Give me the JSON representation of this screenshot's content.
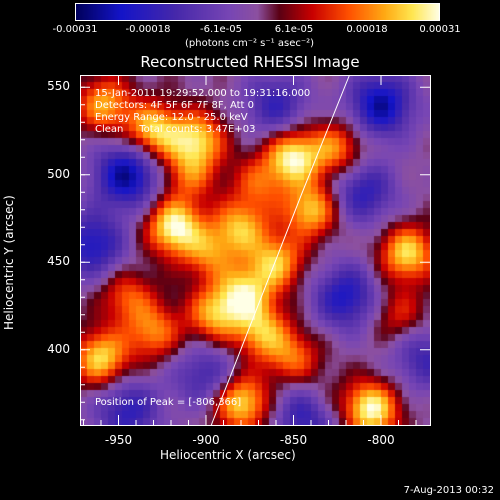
{
  "chart_data": {
    "type": "heatmap",
    "title": "Reconstructed RHESSI Image",
    "xlabel": "Heliocentric X (arcsec)",
    "ylabel": "Heliocentric Y (arcsec)",
    "xlim": [
      -972,
      -772
    ],
    "ylim": [
      357,
      557
    ],
    "xticks": [
      "-950",
      "-900",
      "-850",
      "-800"
    ],
    "xtick_values": [
      -950,
      -900,
      -850,
      -800
    ],
    "yticks": [
      "400",
      "450",
      "500",
      "550"
    ],
    "ytick_values": [
      400,
      450,
      500,
      550
    ],
    "colorbar": {
      "ticks": [
        "-0.00031",
        "-0.00018",
        "-6.1e-05",
        "6.1e-05",
        "0.00018",
        "0.00031"
      ],
      "units": "(photons cm⁻² s⁻¹ asec⁻²)",
      "range": [
        -0.00031,
        0.00031
      ]
    },
    "info_lines": [
      "15-Jan-2011 19:29:52.000 to 19:31:16.000",
      "Detectors: 4F 5F 6F 7F 8F, Att 0",
      "Energy Range: 12.0 - 25.0 keV",
      "Clean     Total counts: 3.47E+03"
    ],
    "peak_label": "Position of Peak = [-806,366]",
    "peak": [
      -806,
      366
    ],
    "limb_line": [
      [
        -897,
        357
      ],
      [
        -845,
        490
      ],
      [
        -818,
        557
      ]
    ],
    "sources": [
      {
        "x": -958,
        "y": 540,
        "v": 0.7
      },
      {
        "x": -930,
        "y": 525,
        "v": 0.85
      },
      {
        "x": -905,
        "y": 520,
        "v": 0.8
      },
      {
        "x": -918,
        "y": 470,
        "v": 1.0
      },
      {
        "x": -880,
        "y": 470,
        "v": 0.7
      },
      {
        "x": -860,
        "y": 450,
        "v": 0.75
      },
      {
        "x": -850,
        "y": 510,
        "v": 0.95
      },
      {
        "x": -840,
        "y": 480,
        "v": 0.8
      },
      {
        "x": -825,
        "y": 515,
        "v": 0.6
      },
      {
        "x": -878,
        "y": 432,
        "v": 0.8
      },
      {
        "x": -895,
        "y": 420,
        "v": 0.7
      },
      {
        "x": -868,
        "y": 410,
        "v": 0.7
      },
      {
        "x": -850,
        "y": 395,
        "v": 0.55
      },
      {
        "x": -960,
        "y": 395,
        "v": 0.85
      },
      {
        "x": -930,
        "y": 410,
        "v": 0.6
      },
      {
        "x": -945,
        "y": 430,
        "v": 0.5
      },
      {
        "x": -880,
        "y": 370,
        "v": 0.9
      },
      {
        "x": -835,
        "y": 370,
        "v": 0.55
      },
      {
        "x": -806,
        "y": 366,
        "v": 1.0
      },
      {
        "x": -785,
        "y": 455,
        "v": 0.85
      },
      {
        "x": -790,
        "y": 420,
        "v": 0.4
      },
      {
        "x": -910,
        "y": 500,
        "v": 0.5
      },
      {
        "x": -870,
        "y": 495,
        "v": 0.45
      },
      {
        "x": -898,
        "y": 455,
        "v": 0.55
      }
    ],
    "negatives": [
      {
        "x": -945,
        "y": 500,
        "v": 0.9
      },
      {
        "x": -965,
        "y": 460,
        "v": 0.7
      },
      {
        "x": -800,
        "y": 540,
        "v": 0.85
      },
      {
        "x": -810,
        "y": 490,
        "v": 0.6
      },
      {
        "x": -840,
        "y": 365,
        "v": 0.9
      },
      {
        "x": -820,
        "y": 430,
        "v": 0.7
      },
      {
        "x": -900,
        "y": 385,
        "v": 0.5
      },
      {
        "x": -860,
        "y": 540,
        "v": 0.55
      },
      {
        "x": -945,
        "y": 365,
        "v": 0.6
      },
      {
        "x": -775,
        "y": 395,
        "v": 0.5
      }
    ]
  },
  "footer": "7-Aug-2013 00:32"
}
